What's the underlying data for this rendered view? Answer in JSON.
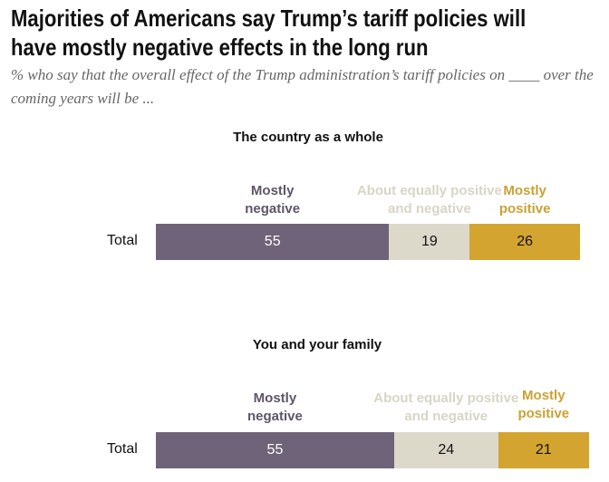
{
  "title": "Majorities of Americans say Trump’s tariff policies will have mostly negative effects in the long run",
  "title_lines": [
    "Majorities of Americans say Trump’s tariff policies will",
    "have mostly negative effects in the long run"
  ],
  "subtitle": "% who say that the overall effect of the Trump administration’s tariff policies on ____ over the coming years will be ...",
  "colors": {
    "Mostly negative": "#6f6379",
    "About equally positive and negative": "#dcd9cb",
    "Mostly positive": "#d3a42f"
  },
  "label_colors": {
    "Mostly negative": "#5f5569",
    "About equally positive and negative": "#d8d5c6",
    "Mostly positive": "#c9a234"
  },
  "chart_data": [
    {
      "type": "bar",
      "stacked": true,
      "orientation": "horizontal",
      "title": "The country as a whole",
      "categories": [
        "Total"
      ],
      "series": [
        {
          "name": "Mostly negative",
          "label_lines": [
            "Mostly",
            "negative"
          ],
          "values": [
            55
          ]
        },
        {
          "name": "About equally positive and negative",
          "label_lines": [
            "About equally positive",
            "and negative"
          ],
          "values": [
            19
          ]
        },
        {
          "name": "Mostly positive",
          "label_lines": [
            "Mostly",
            "positive"
          ],
          "values": [
            26
          ]
        }
      ]
    },
    {
      "type": "bar",
      "stacked": true,
      "orientation": "horizontal",
      "title": "You and your family",
      "categories": [
        "Total"
      ],
      "series": [
        {
          "name": "Mostly negative",
          "label_lines": [
            "Mostly",
            "negative"
          ],
          "values": [
            55
          ]
        },
        {
          "name": "About equally positive and negative",
          "label_lines": [
            "About equally positive",
            "and negative"
          ],
          "values": [
            24
          ]
        },
        {
          "name": "Mostly positive",
          "label_lines": [
            "Mostly",
            "positive"
          ],
          "values": [
            21
          ]
        }
      ]
    }
  ]
}
